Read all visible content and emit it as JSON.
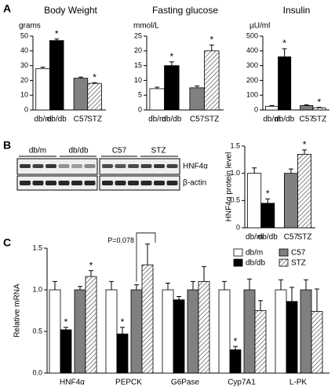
{
  "panels": [
    "A",
    "B",
    "C"
  ],
  "blot": {
    "groups": [
      "db/m",
      "db/db",
      "C57",
      "STZ"
    ],
    "rows": [
      "HNF4α",
      "β-actin"
    ]
  },
  "chart_data": [
    {
      "type": "bar",
      "title": "Body Weight",
      "y_label": "grams",
      "categories": [
        "db/m",
        "db/db",
        "C57",
        "STZ"
      ],
      "values": [
        28,
        47,
        21.5,
        18
      ],
      "errors": [
        1,
        1,
        0.8,
        0.5
      ],
      "colors": [
        "#ffffff",
        "#000000",
        "#808080",
        "#ffffff"
      ],
      "hatched": [
        false,
        false,
        false,
        true
      ],
      "ylim": [
        0,
        50
      ],
      "yticks": [
        0,
        10,
        20,
        30,
        40,
        50
      ],
      "annotations": [
        {
          "text": "*",
          "category": "db/db"
        },
        {
          "text": "*",
          "category": "STZ"
        }
      ]
    },
    {
      "type": "bar",
      "title": "Fasting glucose",
      "y_label": "mmol/L",
      "categories": [
        "db/m",
        "db/db",
        "C57",
        "STZ"
      ],
      "values": [
        7.2,
        15,
        7.5,
        20
      ],
      "errors": [
        0.5,
        1.3,
        0.6,
        2
      ],
      "colors": [
        "#ffffff",
        "#000000",
        "#808080",
        "#ffffff"
      ],
      "hatched": [
        false,
        false,
        false,
        true
      ],
      "ylim": [
        0,
        25
      ],
      "yticks": [
        0,
        5,
        10,
        15,
        20,
        25
      ],
      "annotations": [
        {
          "text": "*",
          "category": "db/db"
        },
        {
          "text": "*",
          "category": "STZ"
        }
      ]
    },
    {
      "type": "bar",
      "title": "Insulin",
      "y_label": "µU/ml",
      "categories": [
        "db/m",
        "db/db",
        "C57",
        "STZ"
      ],
      "values": [
        25,
        360,
        30,
        15
      ],
      "errors": [
        5,
        55,
        5,
        3
      ],
      "colors": [
        "#ffffff",
        "#000000",
        "#808080",
        "#ffffff"
      ],
      "hatched": [
        false,
        false,
        false,
        true
      ],
      "ylim": [
        0,
        500
      ],
      "yticks": [
        0,
        100,
        200,
        300,
        400,
        500
      ],
      "annotations": [
        {
          "text": "*",
          "category": "db/db"
        },
        {
          "text": "*",
          "category": "STZ"
        }
      ]
    },
    {
      "type": "bar",
      "y_label": "HNF4α protein level",
      "categories": [
        "db/m",
        "db/db",
        "C57",
        "STZ"
      ],
      "values": [
        1.0,
        0.45,
        1.0,
        1.35
      ],
      "errors": [
        0.1,
        0.08,
        0.08,
        0.08
      ],
      "colors": [
        "#ffffff",
        "#000000",
        "#808080",
        "#ffffff"
      ],
      "hatched": [
        false,
        false,
        false,
        true
      ],
      "ylim": [
        0,
        1.5
      ],
      "yticks": [
        0,
        0.5,
        {
          "value": 1,
          "label": "1.0"
        },
        1.5
      ],
      "annotations": [
        {
          "text": "*",
          "category": "db/db"
        },
        {
          "text": "*",
          "category": "STZ"
        }
      ]
    },
    {
      "type": "grouped_bar",
      "y_label": "Relative mRNA",
      "categories": [
        "HNF4α",
        "PEPCK",
        "G6Pase",
        "Cyp7A1",
        "L-PK"
      ],
      "series": [
        {
          "name": "db/m",
          "color": "#ffffff",
          "hatched": false,
          "values": [
            1,
            1,
            1,
            1,
            1
          ],
          "errors": [
            0.1,
            0.1,
            0.08,
            0.1,
            0.12
          ]
        },
        {
          "name": "db/db",
          "color": "#000000",
          "hatched": false,
          "values": [
            0.52,
            0.47,
            0.88,
            0.28,
            0.86
          ],
          "errors": [
            0.03,
            0.08,
            0.04,
            0.04,
            0.17
          ]
        },
        {
          "name": "C57",
          "color": "#808080",
          "hatched": false,
          "values": [
            1,
            1,
            1,
            1,
            1
          ],
          "errors": [
            0.04,
            0.06,
            0.1,
            0.13,
            0.12
          ]
        },
        {
          "name": "STZ",
          "color": "#ffffff",
          "hatched": true,
          "values": [
            1.16,
            1.3,
            1.1,
            0.75,
            0.74
          ],
          "errors": [
            0.07,
            0.25,
            0.18,
            0.12,
            0.27
          ]
        }
      ],
      "ylim": [
        0,
        1.5
      ],
      "yticks": [
        {
          "value": 0,
          "label": "0.0"
        },
        0.5,
        {
          "value": 1,
          "label": "1.0"
        },
        1.5
      ],
      "legend": "upper right",
      "annotations": [
        {
          "text": "*",
          "category": "HNF4α",
          "series": "db/db"
        },
        {
          "text": "*",
          "category": "HNF4α",
          "series": "STZ"
        },
        {
          "text": "*",
          "category": "PEPCK",
          "series": "db/db"
        },
        {
          "text": "*",
          "category": "Cyp7A1",
          "series": "db/db"
        },
        {
          "text": "P=0.078",
          "category": "PEPCK",
          "series": [
            "C57",
            "STZ"
          ]
        }
      ]
    }
  ]
}
